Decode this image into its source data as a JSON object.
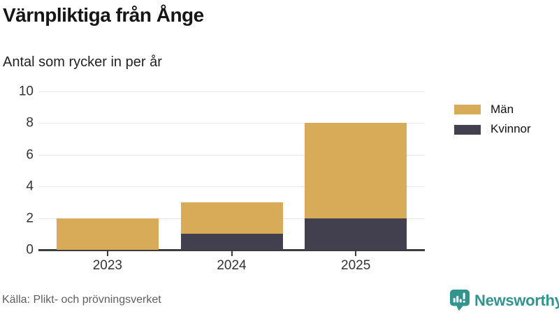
{
  "header": {
    "title": "Värnpliktiga från Ånge",
    "subtitle": "Antal som rycker in per år"
  },
  "legend": [
    {
      "label": "Män",
      "color": "#d8ab58"
    },
    {
      "label": "Kvinnor",
      "color": "#42404e"
    }
  ],
  "footer": {
    "source": "Källa: Plikt- och prövningsverket",
    "brand": "Newsworthy",
    "brand_color": "#33938d",
    "logo_icon": "bar-chart-speech-bubble-icon"
  },
  "chart_data": {
    "type": "bar",
    "stacked": true,
    "title": "Värnpliktiga från Ånge",
    "subtitle": "Antal som rycker in per år",
    "categories": [
      "2023",
      "2024",
      "2025"
    ],
    "series": [
      {
        "name": "Kvinnor",
        "color": "#42404e",
        "values": [
          0,
          1,
          2
        ]
      },
      {
        "name": "Män",
        "color": "#d8ab58",
        "values": [
          2,
          2,
          6
        ]
      }
    ],
    "totals": [
      2,
      3,
      8
    ],
    "xlabel": "",
    "ylabel": "",
    "ylim": [
      0,
      10
    ],
    "yticks": [
      0,
      2,
      4,
      6,
      8,
      10
    ],
    "grid": true,
    "legend_position": "right",
    "colors": {
      "gridline": "#e8e8e8",
      "axis": "#3c3c3c"
    }
  }
}
